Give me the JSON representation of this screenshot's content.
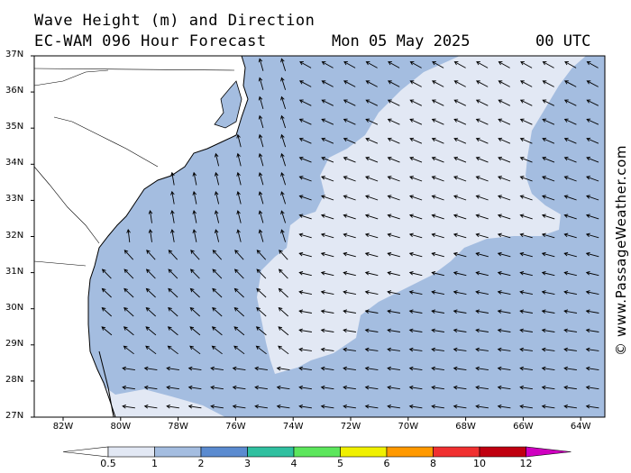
{
  "header": {
    "title_line1": "Wave Height (m) and Direction",
    "title_line2": "EC-WAM 096 Hour Forecast",
    "date": "Mon 05 May 2025",
    "time": "00 UTC"
  },
  "credit": "© www.PassageWeather.com",
  "map": {
    "lat_labels": [
      "37N",
      "36N",
      "35N",
      "34N",
      "33N",
      "32N",
      "31N",
      "30N",
      "29N",
      "28N",
      "27N"
    ],
    "lon_labels": [
      "82W",
      "80W",
      "78W",
      "76W",
      "74W",
      "72W",
      "70W",
      "68W",
      "66W",
      "64W"
    ],
    "colors": {
      "land": "#ffffff",
      "wave_0_5_1": "#e2e8f4",
      "wave_1_2": "#a4bde0",
      "arrow": "#000000"
    },
    "arrow_direction_note": "arrows point toward wave travel: north along the Carolina coast, west-northwest offshore, west in the south-east"
  },
  "colorbar": {
    "labels": [
      "0.5",
      "1",
      "2",
      "3",
      "4",
      "5",
      "6",
      "8",
      "10",
      "12"
    ],
    "colors": [
      "#e2e8f4",
      "#a4bde0",
      "#5b8bd0",
      "#30c0a0",
      "#5ce65c",
      "#f0f000",
      "#ff9900",
      "#f03030",
      "#c00010",
      "#d000c0"
    ]
  }
}
